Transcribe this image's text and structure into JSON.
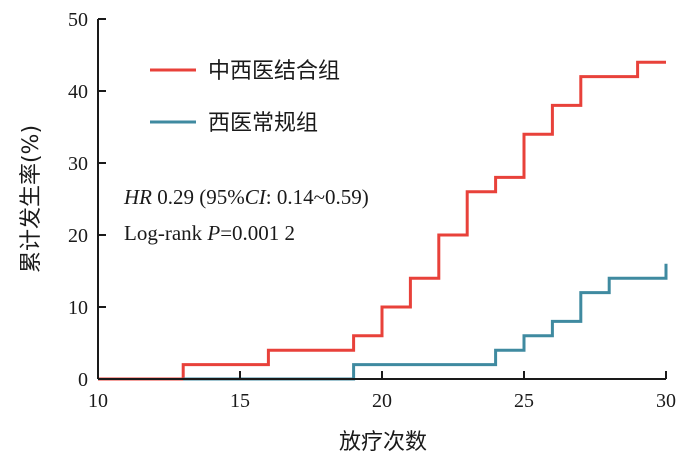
{
  "chart_data": {
    "type": "line",
    "step": true,
    "xlabel": "放疗次数",
    "ylabel": "累计发生率(%)",
    "xlim": [
      10,
      30
    ],
    "ylim": [
      0,
      50
    ],
    "xticks": [
      "10",
      "15",
      "20",
      "25",
      "30"
    ],
    "yticks": [
      "0",
      "10",
      "20",
      "30",
      "40",
      "50"
    ],
    "grid": false,
    "legend_position": "top-left",
    "series": [
      {
        "name": "中西医结合组",
        "color": "#e8413a",
        "points": [
          [
            10,
            0
          ],
          [
            13,
            0
          ],
          [
            13,
            2
          ],
          [
            16,
            2
          ],
          [
            16,
            4
          ],
          [
            19,
            4
          ],
          [
            19,
            6
          ],
          [
            20,
            6
          ],
          [
            20,
            10
          ],
          [
            21,
            10
          ],
          [
            21,
            14
          ],
          [
            22,
            14
          ],
          [
            22,
            20
          ],
          [
            23,
            20
          ],
          [
            23,
            26
          ],
          [
            24,
            26
          ],
          [
            24,
            28
          ],
          [
            25,
            28
          ],
          [
            25,
            34
          ],
          [
            26,
            34
          ],
          [
            26,
            38
          ],
          [
            27,
            38
          ],
          [
            27,
            42
          ],
          [
            29,
            42
          ],
          [
            29,
            44
          ],
          [
            30,
            44
          ]
        ]
      },
      {
        "name": "西医常规组",
        "color": "#3f8aa0",
        "points": [
          [
            13,
            0
          ],
          [
            19,
            0
          ],
          [
            19,
            2
          ],
          [
            24,
            2
          ],
          [
            24,
            4
          ],
          [
            25,
            4
          ],
          [
            25,
            6
          ],
          [
            26,
            6
          ],
          [
            26,
            8
          ],
          [
            27,
            8
          ],
          [
            27,
            12
          ],
          [
            28,
            12
          ],
          [
            28,
            14
          ],
          [
            30,
            14
          ],
          [
            30,
            16
          ]
        ]
      }
    ],
    "annotations": [
      {
        "id": "hr",
        "parts": [
          {
            "text": "HR",
            "italic": true
          },
          {
            "text": " 0.29 (95%",
            "italic": false
          },
          {
            "text": "CI",
            "italic": true
          },
          {
            "text": ": 0.14~0.59)",
            "italic": false
          }
        ]
      },
      {
        "id": "logrank",
        "parts": [
          {
            "text": "Log-rank ",
            "italic": false
          },
          {
            "text": "P",
            "italic": true
          },
          {
            "text": "=0.001 2",
            "italic": false
          }
        ]
      }
    ]
  }
}
